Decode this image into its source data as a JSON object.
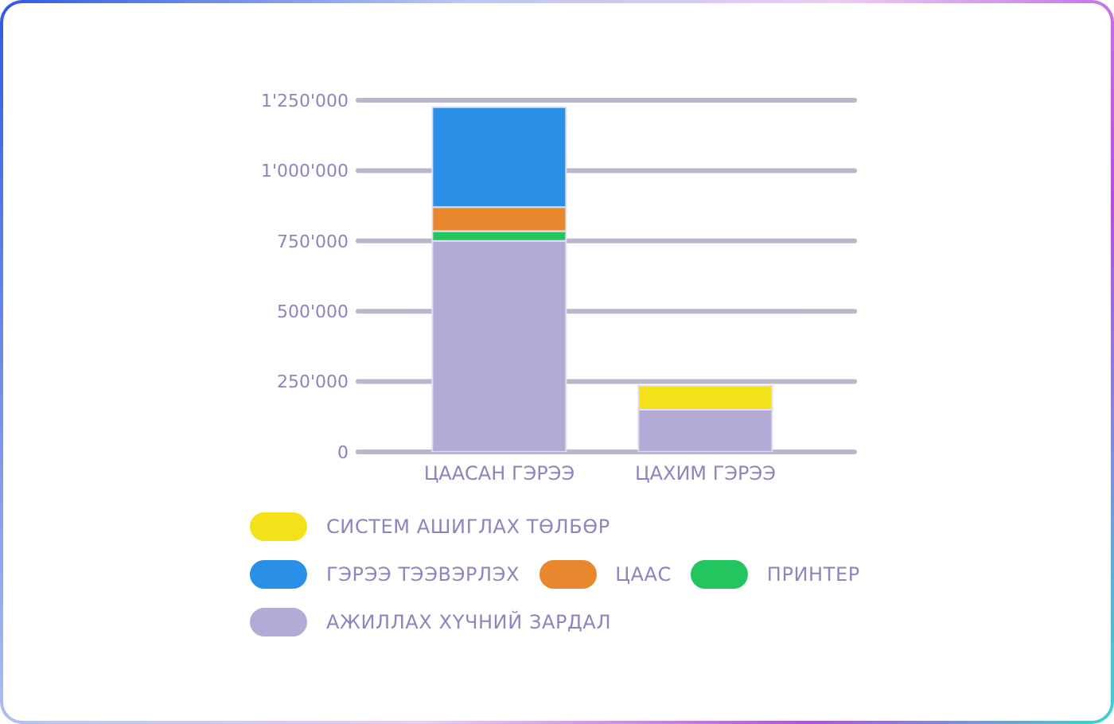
{
  "chart_data": {
    "type": "bar",
    "stacked": true,
    "categories": [
      "ЦААСАН ГЭРЭЭ",
      "ЦАХИМ ГЭРЭЭ"
    ],
    "series": [
      {
        "name": "АЖИЛЛАХ ХҮЧНИЙ ЗАРДАЛ",
        "color": "#b3aad6",
        "values": [
          750000,
          150000
        ]
      },
      {
        "name": "ПРИНТЕР",
        "color": "#22c55e",
        "values": [
          35000,
          null
        ]
      },
      {
        "name": "ЦААС",
        "color": "#e8872e",
        "values": [
          85000,
          null
        ]
      },
      {
        "name": "ГЭРЭЭ ТЭЭВЭРЛЭХ",
        "color": "#2a8fe6",
        "values": [
          355000,
          null
        ]
      },
      {
        "name": "СИСТЕМ АШИГЛАХ ТӨЛБӨР",
        "color": "#f3e21a",
        "values": [
          null,
          85000
        ]
      }
    ],
    "ylim": [
      0,
      1250000
    ],
    "yticks": [
      0,
      {
        "value": 250000,
        "label": "250'000"
      },
      {
        "value": 500000,
        "label": "500'000"
      },
      {
        "value": 750000,
        "label": "750'000"
      },
      {
        "value": 1000000,
        "label": "1'000'000"
      },
      {
        "value": 1250000,
        "label": "1'250'000"
      }
    ],
    "grid": "y",
    "legend": "bottom"
  }
}
